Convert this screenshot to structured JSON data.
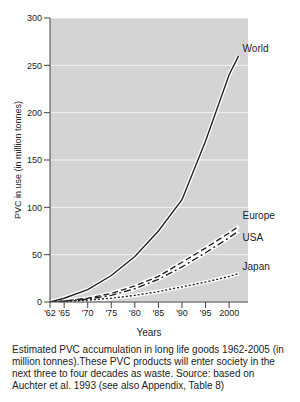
{
  "chart_data": {
    "type": "line",
    "x_label": "Years",
    "y_label": "PVC in use (in million tonnes)",
    "caption": "Estimated PVC accumulation in long life goods 1962-2005 (in million tonnes).These PVC products will enter society in the next three to four decades as waste. Source: based on Auchter et al. 1993 (see also Appendix, Table 8)",
    "x": [
      1962,
      1965,
      1970,
      1975,
      1980,
      1985,
      1990,
      1995,
      2000,
      2002
    ],
    "series": [
      {
        "name": "World",
        "color": "#222222",
        "line_style": "solid",
        "values": [
          0,
          4,
          13,
          28,
          48,
          75,
          108,
          170,
          240,
          260
        ]
      },
      {
        "name": "Europe",
        "color": "#222222",
        "line_style": "dashed",
        "values": [
          0,
          1,
          4,
          9,
          17,
          27,
          42,
          57,
          73,
          80
        ]
      },
      {
        "name": "USA",
        "color": "#222222",
        "line_style": "dashdot",
        "values": [
          0,
          1,
          3,
          7,
          14,
          24,
          37,
          52,
          68,
          75
        ]
      },
      {
        "name": "Japan",
        "color": "#222222",
        "line_style": "dotted",
        "values": [
          0,
          0.5,
          2,
          4,
          7,
          11,
          16,
          21,
          27,
          30
        ]
      }
    ],
    "xlim": [
      1962,
      2004
    ],
    "xticks": [
      {
        "value": 1962,
        "label": "'62"
      },
      {
        "value": 1965,
        "label": "'65"
      },
      {
        "value": 1970,
        "label": "'70"
      },
      {
        "value": 1975,
        "label": "'75"
      },
      {
        "value": 1980,
        "label": "'80"
      },
      {
        "value": 1985,
        "label": "'85"
      },
      {
        "value": 1990,
        "label": "'90"
      },
      {
        "value": 1995,
        "label": "'95"
      },
      2000
    ],
    "ylim": [
      0,
      300
    ],
    "yticks": [
      0,
      50,
      100,
      150,
      200,
      250,
      300
    ],
    "grid": true
  }
}
